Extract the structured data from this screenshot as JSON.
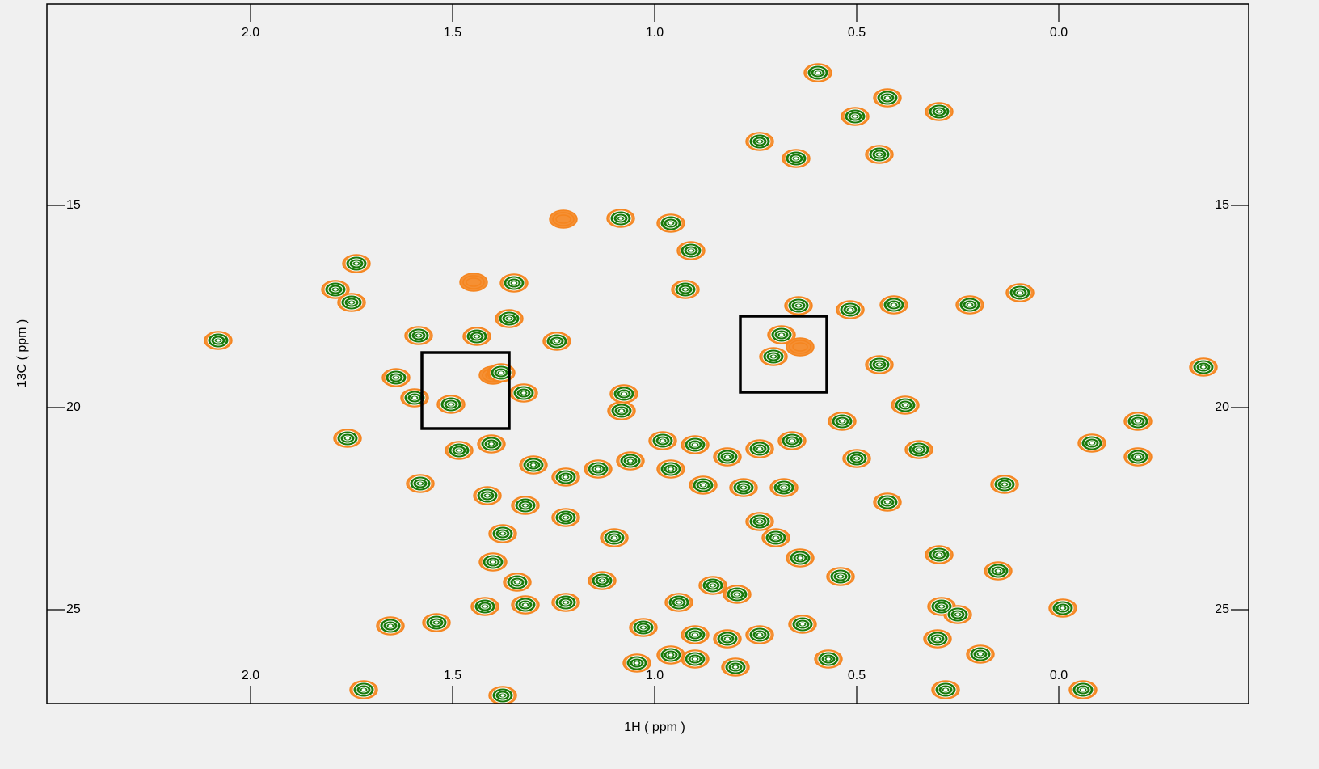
{
  "chart_data": {
    "type": "contour",
    "xlabel": "1H ( ppm )",
    "ylabel": "13C ( ppm )",
    "xlim": [
      2.504,
      -0.47
    ],
    "ylim": [
      10.02,
      27.32
    ],
    "xticks": [
      {
        "value": 2,
        "label": "2.0"
      },
      {
        "value": 1.5,
        "label": "1.5"
      },
      {
        "value": 1,
        "label": "1.0"
      },
      {
        "value": 0.5,
        "label": "0.5"
      },
      {
        "value": 0,
        "label": "0.0"
      }
    ],
    "yticks": [
      15,
      20,
      25
    ],
    "regions": [
      {
        "x": [
          1.576,
          1.36
        ],
        "y": [
          18.64,
          20.52
        ]
      },
      {
        "x": [
          0.788,
          0.574
        ],
        "y": [
          17.74,
          19.62
        ]
      }
    ],
    "series": [
      {
        "color": "#f5851f",
        "x": [
          0.596,
          0.424,
          0.504,
          0.296,
          0.74,
          0.65,
          0.444,
          1.084,
          0.96,
          0.91,
          1.738,
          1.348,
          1.79,
          1.75,
          0.924,
          0.644,
          0.516,
          0.408,
          0.22,
          0.096,
          2.08,
          1.584,
          1.44,
          1.36,
          1.242,
          0.686,
          0.706,
          0.444,
          -0.358,
          1.64,
          1.594,
          1.504,
          1.38,
          1.324,
          1.076,
          1.082,
          0.38,
          1.76,
          0.536,
          -0.196,
          -0.082,
          -0.196,
          1.484,
          1.404,
          1.58,
          1.414,
          0.346,
          0.134,
          0.424,
          0.296,
          0.15,
          -0.01,
          -0.06,
          0.194,
          0.57,
          0.634,
          1.376,
          1.13,
          0.94,
          0.856,
          0.796,
          1.044,
          1.028,
          1.654,
          1.72,
          1.376,
          1.3,
          1.22,
          1.14,
          1.06,
          0.98,
          0.9,
          0.82,
          0.74,
          0.66,
          0.5,
          0.96,
          0.88,
          0.78,
          0.68,
          1.32,
          1.22,
          1.1,
          0.74,
          0.7,
          0.64,
          0.54,
          1.54,
          1.42,
          1.32,
          1.22,
          0.9,
          0.82,
          0.74,
          0.9,
          0.8,
          0.96,
          0.29,
          0.25,
          0.3,
          0.28,
          1.4,
          1.34,
          1.4,
          0.64,
          1.448,
          1.226
        ],
        "values": [
          11.72,
          12.34,
          12.8,
          12.68,
          13.42,
          13.84,
          13.74,
          15.32,
          15.44,
          16.12,
          16.44,
          16.92,
          17.08,
          17.4,
          17.08,
          17.48,
          17.58,
          17.46,
          17.46,
          17.16,
          18.34,
          18.22,
          18.24,
          17.8,
          18.36,
          18.2,
          18.74,
          18.94,
          19.0,
          19.26,
          19.76,
          19.92,
          19.14,
          19.64,
          19.66,
          20.08,
          19.94,
          20.76,
          20.34,
          20.34,
          20.88,
          21.22,
          21.06,
          20.9,
          21.88,
          22.18,
          21.04,
          21.9,
          22.34,
          23.64,
          24.04,
          24.96,
          26.98,
          26.1,
          26.22,
          25.36,
          23.12,
          24.28,
          24.82,
          24.4,
          24.62,
          26.32,
          25.44,
          25.4,
          26.98,
          27.12,
          21.42,
          21.72,
          21.52,
          21.32,
          20.82,
          20.92,
          21.22,
          21.02,
          20.82,
          21.26,
          21.52,
          21.92,
          21.98,
          21.98,
          22.42,
          22.72,
          23.22,
          22.82,
          23.22,
          23.72,
          24.18,
          25.32,
          24.92,
          24.88,
          24.82,
          25.62,
          25.72,
          25.62,
          26.22,
          26.42,
          26.12,
          24.92,
          25.12,
          25.72,
          26.98,
          23.82,
          24.32,
          19.2,
          18.5,
          16.9,
          15.34
        ]
      },
      {
        "color": "#1a7a0c",
        "x": [
          0.596,
          0.424,
          0.504,
          0.296,
          0.74,
          0.65,
          0.444,
          1.084,
          0.96,
          0.91,
          1.738,
          1.348,
          1.79,
          1.75,
          0.924,
          0.644,
          0.516,
          0.408,
          0.22,
          0.096,
          2.08,
          1.584,
          1.44,
          1.36,
          1.242,
          0.686,
          0.706,
          0.444,
          -0.358,
          1.64,
          1.594,
          1.504,
          1.38,
          1.324,
          1.076,
          1.082,
          0.38,
          1.76,
          0.536,
          -0.196,
          -0.082,
          -0.196,
          1.484,
          1.404,
          1.58,
          1.414,
          0.346,
          0.134,
          0.424,
          0.296,
          0.15,
          -0.01,
          -0.06,
          0.194,
          0.57,
          0.634,
          1.376,
          1.13,
          0.94,
          0.856,
          0.796,
          1.044,
          1.028,
          1.654,
          1.72,
          1.376,
          1.3,
          1.22,
          1.14,
          1.06,
          0.98,
          0.9,
          0.82,
          0.74,
          0.66,
          0.5,
          0.96,
          0.88,
          0.78,
          0.68,
          1.32,
          1.22,
          1.1,
          0.74,
          0.7,
          0.64,
          0.54,
          1.54,
          1.42,
          1.32,
          1.22,
          0.9,
          0.82,
          0.74,
          0.9,
          0.8,
          0.96,
          0.29,
          0.25,
          0.3,
          0.28,
          1.4,
          1.34
        ],
        "values": [
          11.72,
          12.34,
          12.8,
          12.68,
          13.42,
          13.84,
          13.74,
          15.32,
          15.44,
          16.12,
          16.44,
          16.92,
          17.08,
          17.4,
          17.08,
          17.48,
          17.58,
          17.46,
          17.46,
          17.16,
          18.34,
          18.22,
          18.24,
          17.8,
          18.36,
          18.2,
          18.74,
          18.94,
          19.0,
          19.26,
          19.76,
          19.92,
          19.14,
          19.64,
          19.66,
          20.08,
          19.94,
          20.76,
          20.34,
          20.34,
          20.88,
          21.22,
          21.06,
          20.9,
          21.88,
          22.18,
          21.04,
          21.9,
          22.34,
          23.64,
          24.04,
          24.96,
          26.98,
          26.1,
          26.22,
          25.36,
          23.12,
          24.28,
          24.82,
          24.4,
          24.62,
          26.32,
          25.44,
          25.4,
          26.98,
          27.12,
          21.42,
          21.72,
          21.52,
          21.32,
          20.82,
          20.92,
          21.22,
          21.02,
          20.82,
          21.26,
          21.52,
          21.92,
          21.98,
          21.98,
          22.42,
          22.72,
          23.22,
          22.82,
          23.22,
          23.72,
          24.18,
          25.32,
          24.92,
          24.88,
          24.82,
          25.62,
          25.72,
          25.62,
          26.22,
          26.42,
          26.12,
          24.92,
          25.12,
          25.72,
          26.98,
          23.82,
          24.32
        ]
      }
    ]
  }
}
